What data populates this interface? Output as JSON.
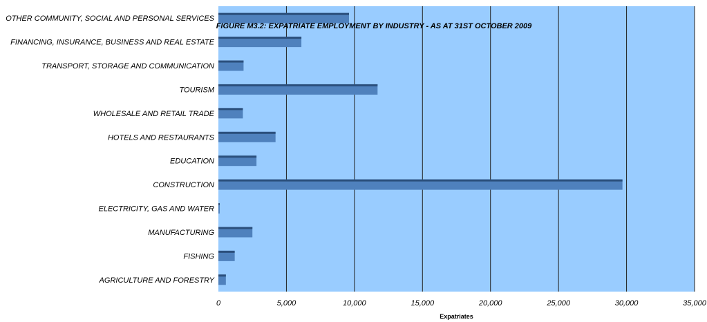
{
  "chart_data": {
    "type": "bar",
    "orientation": "horizontal",
    "title": "FIGURE M3.2: EXPATRIATE EMPLOYMENT BY INDUSTRY - AS AT  31ST OCTOBER 2009",
    "xlabel": "Expatriates",
    "ylabel": "",
    "categories": [
      "OTHER COMMUNITY, SOCIAL AND PERSONAL SERVICES",
      "FINANCING, INSURANCE, BUSINESS AND REAL ESTATE",
      "TRANSPORT, STORAGE AND COMMUNICATION",
      "TOURISM",
      "WHOLESALE AND RETAIL TRADE",
      "HOTELS AND RESTAURANTS",
      "EDUCATION",
      "CONSTRUCTION",
      "ELECTRICITY, GAS AND WATER",
      "MANUFACTURING",
      "FISHING",
      "AGRICULTURE AND FORESTRY"
    ],
    "values": [
      9600,
      6100,
      1850,
      11700,
      1800,
      4200,
      2800,
      29700,
      100,
      2500,
      1200,
      550
    ],
    "xlim": [
      0,
      35000
    ],
    "xticks": [
      0,
      5000,
      10000,
      15000,
      20000,
      25000,
      30000,
      35000
    ],
    "xtick_labels": [
      "0",
      "5,000",
      "10,000",
      "15,000",
      "20,000",
      "25,000",
      "30,000",
      "35,000"
    ],
    "grid": "vertical",
    "legend": "none",
    "colors": {
      "plot_background": "#99ccff",
      "bar_fill": "#4f81bd",
      "bar_top": "#2b4f7c",
      "gridline": "#222222"
    }
  }
}
